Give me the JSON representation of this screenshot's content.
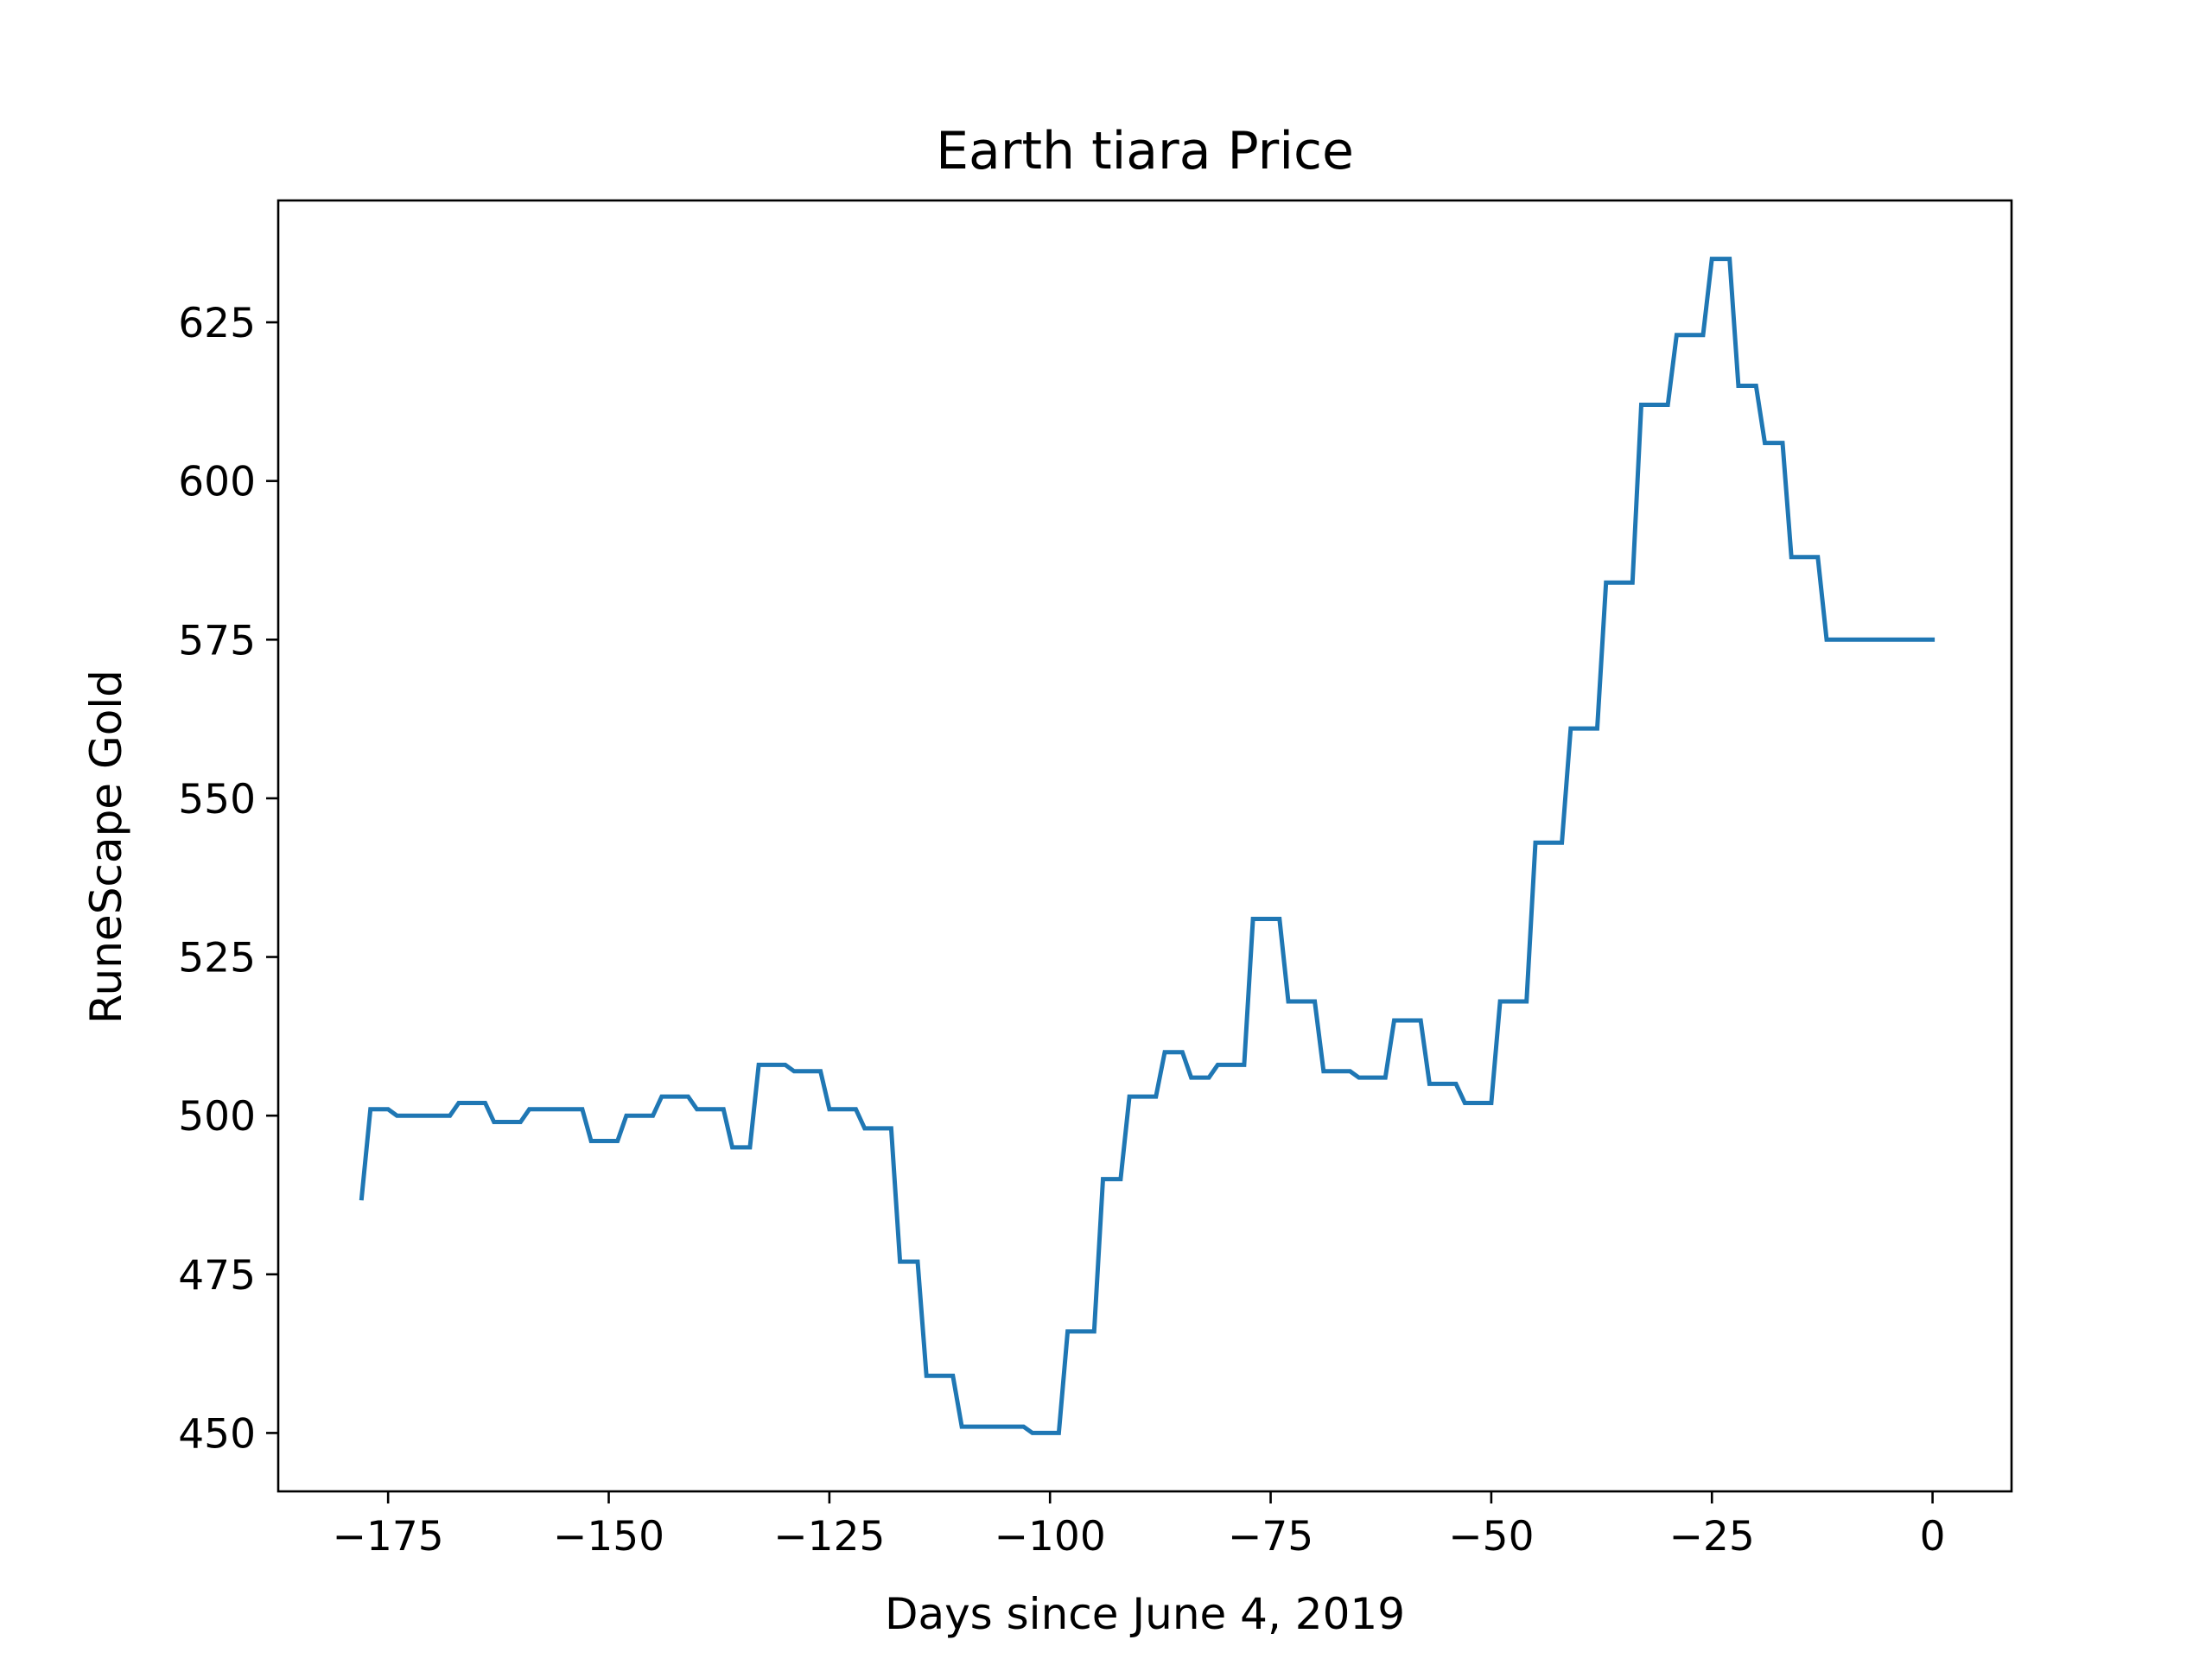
{
  "chart_data": {
    "type": "line",
    "title": "Earth tiara Price",
    "xlabel": "Days since June 4, 2019",
    "ylabel": "RuneScape Gold",
    "xlim": [
      -187.45,
      8.95
    ],
    "ylim": [
      440.8,
      644.2
    ],
    "xticks": [
      -175,
      -150,
      -125,
      -100,
      -75,
      -50,
      -25,
      0
    ],
    "xtick_labels": [
      "−175",
      "−150",
      "−125",
      "−100",
      "−75",
      "−50",
      "−25",
      "0"
    ],
    "yticks": [
      450,
      475,
      500,
      525,
      550,
      575,
      600,
      625
    ],
    "ytick_labels": [
      "450",
      "475",
      "500",
      "525",
      "550",
      "575",
      "600",
      "625"
    ],
    "grid": false,
    "legend": "none",
    "line_color": "#1f77b4",
    "series": [
      {
        "x": [
          -178,
          -177,
          -175,
          -174,
          -173,
          -168,
          -167,
          -164,
          -163,
          -160,
          -159,
          -153,
          -152,
          -149,
          -148,
          -145,
          -144,
          -141,
          -140,
          -137,
          -136,
          -134,
          -133,
          -130,
          -129,
          -126,
          -125,
          -122,
          -121,
          -118,
          -117,
          -115,
          -114,
          -111,
          -110,
          -107,
          -103,
          -102,
          -99,
          -98,
          -95,
          -94,
          -92,
          -91,
          -88,
          -87,
          -85,
          -84,
          -82,
          -81,
          -78,
          -77,
          -74,
          -73,
          -70,
          -69,
          -66,
          -65,
          -62,
          -61,
          -58,
          -57,
          -54,
          -53,
          -50,
          -49,
          -46,
          -45,
          -42,
          -41,
          -38,
          -37,
          -34,
          -33,
          -30,
          -29,
          -26,
          -25,
          -23,
          -22,
          -20,
          -19,
          -17,
          -16,
          -13,
          -12,
          -10,
          -9,
          -7,
          -6,
          -4,
          -3,
          0
        ],
        "y": [
          487,
          501,
          501,
          500,
          500,
          500,
          502,
          502,
          499,
          499,
          501,
          501,
          496,
          496,
          500,
          500,
          503,
          503,
          501,
          501,
          495,
          495,
          508,
          508,
          507,
          507,
          501,
          501,
          498,
          498,
          477,
          477,
          459,
          459,
          451,
          451,
          451,
          450,
          450,
          466,
          466,
          490,
          490,
          503,
          503,
          510,
          510,
          506,
          506,
          508,
          508,
          531,
          531,
          518,
          518,
          507,
          507,
          506,
          506,
          515,
          515,
          505,
          505,
          502,
          502,
          518,
          518,
          543,
          543,
          561,
          561,
          584,
          584,
          612,
          612,
          623,
          623,
          635,
          635,
          615,
          615,
          606,
          606,
          588,
          588,
          575,
          575,
          575,
          575,
          575,
          575,
          575,
          575
        ]
      }
    ]
  }
}
